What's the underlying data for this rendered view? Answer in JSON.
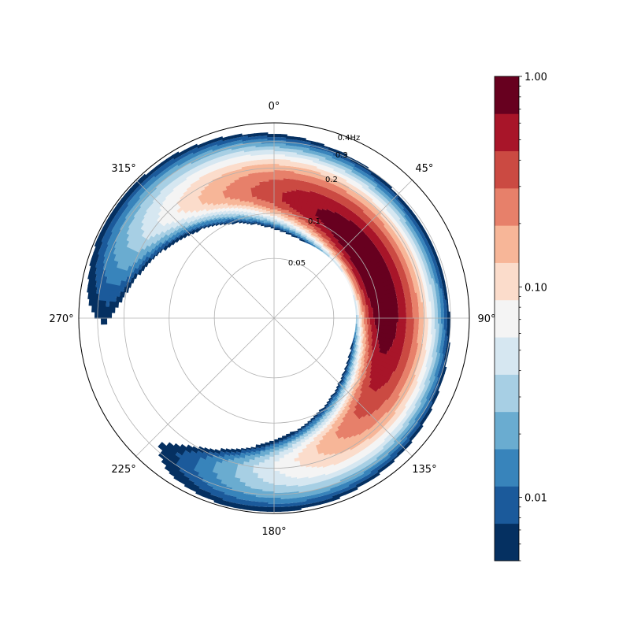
{
  "chart_data": {
    "type": "polar-contour",
    "title": "",
    "angular_axis": {
      "direction": "clockwise",
      "zero_location": "top",
      "tick_labels": [
        "0°",
        "45°",
        "90°",
        "135°",
        "180°",
        "225°",
        "270°",
        "315°"
      ]
    },
    "radial_axis": {
      "ticks": [
        0.05,
        0.1,
        0.2,
        0.3,
        0.4
      ],
      "tick_labels": [
        "0.05",
        "0.1",
        "0.2",
        "0.3",
        "0.4Hz"
      ],
      "scale": "log",
      "range": [
        0.02,
        0.4
      ],
      "label_angle_deg": 22.5
    },
    "field": {
      "peak_direction_deg": 65,
      "peak_frequency_hz": 0.1,
      "peak_value": 1.0,
      "directional_spread": "wide crescent from about 300° to about 170°",
      "lower_frequency_cutoff_hz": 0.07
    },
    "colorbar": {
      "scale": "log",
      "range": [
        0.005,
        1.0
      ],
      "tick_labels": [
        "1.00",
        "0.10",
        "0.01"
      ],
      "tick_values": [
        1.0,
        0.1,
        0.01
      ],
      "colormap": "RdBu_r",
      "levels": 13,
      "colors": [
        "#053061",
        "#1b5a9b",
        "#3884bb",
        "#6aacd0",
        "#a7cfe4",
        "#d6e7f1",
        "#f4f4f4",
        "#fbdccb",
        "#f7b698",
        "#e7806a",
        "#cb4a42",
        "#a81529",
        "#67001f"
      ]
    }
  }
}
